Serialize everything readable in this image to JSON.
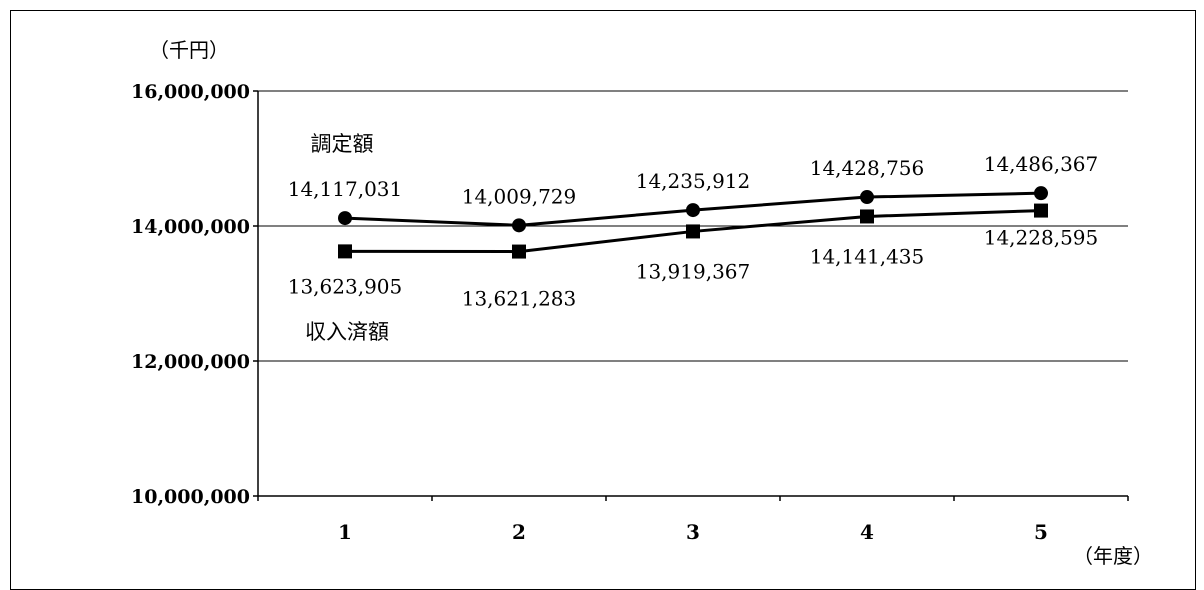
{
  "chart_data": {
    "type": "line",
    "title": "",
    "y_unit_label": "（千円）",
    "x_unit_label": "（年度）",
    "categories": [
      "1",
      "2",
      "3",
      "4",
      "5"
    ],
    "ylim": [
      10000000,
      16000000
    ],
    "y_ticks": [
      10000000,
      12000000,
      14000000,
      16000000
    ],
    "y_tick_labels": [
      "10,000,000",
      "12,000,000",
      "14,000,000",
      "16,000,000"
    ],
    "grid": true,
    "series": [
      {
        "name": "調定額",
        "marker": "circle",
        "values": [
          14117031,
          14009729,
          14235912,
          14428756,
          14486367
        ],
        "value_labels": [
          "14,117,031",
          "14,009,729",
          "14,235,912",
          "14,428,756",
          "14,486,367"
        ]
      },
      {
        "name": "収入済額",
        "marker": "square",
        "values": [
          13623905,
          13621283,
          13919367,
          14141435,
          14228595
        ],
        "value_labels": [
          "13,623,905",
          "13,621,283",
          "13,919,367",
          "14,141,435",
          "14,228,595"
        ]
      }
    ]
  }
}
